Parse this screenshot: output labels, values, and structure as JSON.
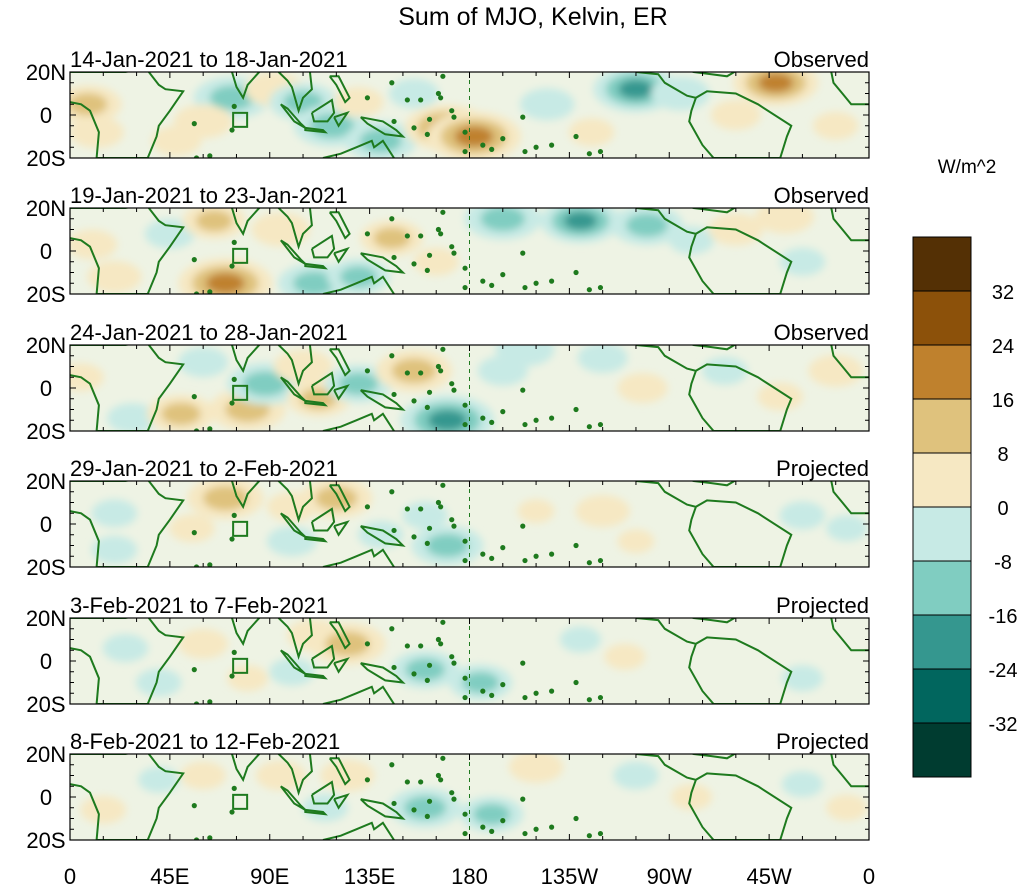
{
  "chart_data": {
    "type": "heatmap",
    "title": "Sum of MJO, Kelvin, ER",
    "units_label": "W/m^2",
    "xlabel": "",
    "ylabel": "",
    "x_ticks": [
      "0",
      "45E",
      "90E",
      "135E",
      "180",
      "135W",
      "90W",
      "45W",
      "0"
    ],
    "x_tick_values": [
      0,
      45,
      90,
      135,
      180,
      225,
      270,
      315,
      360
    ],
    "xlim": [
      0,
      360
    ],
    "y_ticks": [
      "20N",
      "0",
      "20S"
    ],
    "y_tick_values": [
      20,
      0,
      -20
    ],
    "ylim": [
      -20,
      20
    ],
    "colorbar": {
      "levels": [
        -40,
        -32,
        -24,
        -16,
        -8,
        0,
        8,
        16,
        24,
        32,
        40
      ],
      "tick_labels": [
        "32",
        "24",
        "16",
        "8",
        "0",
        "-8",
        "-16",
        "-24",
        "-32"
      ],
      "colors": [
        "#003c30",
        "#01665e",
        "#35978f",
        "#80cdc1",
        "#c7eae5",
        "#f6e8c3",
        "#dfc27d",
        "#bf812d",
        "#8c510a",
        "#543005"
      ]
    },
    "panels": [
      {
        "period": "14-Jan-2021 to 18-Jan-2021",
        "status": "Observed",
        "anomalies": [
          {
            "lon": 8,
            "lat": 5,
            "val": 18
          },
          {
            "lon": 12,
            "lat": -8,
            "val": 12
          },
          {
            "lon": 48,
            "lat": -12,
            "val": 10
          },
          {
            "lon": 73,
            "lat": 8,
            "val": -22
          },
          {
            "lon": 60,
            "lat": -3,
            "val": 14
          },
          {
            "lon": 92,
            "lat": 12,
            "val": 14
          },
          {
            "lon": 105,
            "lat": 6,
            "val": -18
          },
          {
            "lon": 118,
            "lat": -5,
            "val": -22
          },
          {
            "lon": 140,
            "lat": -12,
            "val": -20
          },
          {
            "lon": 130,
            "lat": 6,
            "val": 10
          },
          {
            "lon": 170,
            "lat": -6,
            "val": 26
          },
          {
            "lon": 182,
            "lat": -10,
            "val": 30
          },
          {
            "lon": 155,
            "lat": 10,
            "val": -10
          },
          {
            "lon": 215,
            "lat": 5,
            "val": -12
          },
          {
            "lon": 235,
            "lat": -8,
            "val": 8
          },
          {
            "lon": 255,
            "lat": 12,
            "val": -26
          },
          {
            "lon": 275,
            "lat": 10,
            "val": -14
          },
          {
            "lon": 300,
            "lat": 0,
            "val": 10
          },
          {
            "lon": 318,
            "lat": 15,
            "val": 26
          },
          {
            "lon": 345,
            "lat": -5,
            "val": 8
          }
        ]
      },
      {
        "period": "19-Jan-2021 to 23-Jan-2021",
        "status": "Observed",
        "anomalies": [
          {
            "lon": 10,
            "lat": 3,
            "val": 10
          },
          {
            "lon": 20,
            "lat": -12,
            "val": 12
          },
          {
            "lon": 45,
            "lat": 8,
            "val": -10
          },
          {
            "lon": 65,
            "lat": 14,
            "val": 16
          },
          {
            "lon": 70,
            "lat": -15,
            "val": 30
          },
          {
            "lon": 95,
            "lat": 10,
            "val": 14
          },
          {
            "lon": 110,
            "lat": -15,
            "val": -20
          },
          {
            "lon": 130,
            "lat": -12,
            "val": -16
          },
          {
            "lon": 145,
            "lat": 6,
            "val": 16
          },
          {
            "lon": 165,
            "lat": -5,
            "val": 8
          },
          {
            "lon": 195,
            "lat": 15,
            "val": -22
          },
          {
            "lon": 230,
            "lat": 14,
            "val": -24
          },
          {
            "lon": 260,
            "lat": 12,
            "val": -20
          },
          {
            "lon": 280,
            "lat": 5,
            "val": -8
          },
          {
            "lon": 300,
            "lat": 10,
            "val": 12
          },
          {
            "lon": 322,
            "lat": 16,
            "val": 14
          },
          {
            "lon": 330,
            "lat": -5,
            "val": -8
          }
        ]
      },
      {
        "period": "24-Jan-2021 to 28-Jan-2021",
        "status": "Observed",
        "anomalies": [
          {
            "lon": 5,
            "lat": 5,
            "val": 8
          },
          {
            "lon": 28,
            "lat": -14,
            "val": -10
          },
          {
            "lon": 60,
            "lat": 12,
            "val": -10
          },
          {
            "lon": 50,
            "lat": -12,
            "val": 18
          },
          {
            "lon": 80,
            "lat": -10,
            "val": 22
          },
          {
            "lon": 88,
            "lat": 2,
            "val": -22
          },
          {
            "lon": 105,
            "lat": 10,
            "val": 14
          },
          {
            "lon": 112,
            "lat": -5,
            "val": 16
          },
          {
            "lon": 130,
            "lat": 2,
            "val": -18
          },
          {
            "lon": 155,
            "lat": 8,
            "val": 22
          },
          {
            "lon": 170,
            "lat": -15,
            "val": -30
          },
          {
            "lon": 195,
            "lat": 8,
            "val": -10
          },
          {
            "lon": 205,
            "lat": 18,
            "val": -14
          },
          {
            "lon": 240,
            "lat": 14,
            "val": -10
          },
          {
            "lon": 258,
            "lat": 0,
            "val": 10
          },
          {
            "lon": 295,
            "lat": 8,
            "val": -8
          },
          {
            "lon": 320,
            "lat": -4,
            "val": 8
          },
          {
            "lon": 345,
            "lat": 8,
            "val": 12
          }
        ]
      },
      {
        "period": "29-Jan-2021 to 2-Feb-2021",
        "status": "Projected",
        "anomalies": [
          {
            "lon": 20,
            "lat": 5,
            "val": -8
          },
          {
            "lon": 20,
            "lat": -12,
            "val": -8
          },
          {
            "lon": 70,
            "lat": 12,
            "val": 22
          },
          {
            "lon": 55,
            "lat": -2,
            "val": 8
          },
          {
            "lon": 100,
            "lat": 8,
            "val": 10
          },
          {
            "lon": 100,
            "lat": -8,
            "val": -10
          },
          {
            "lon": 120,
            "lat": 12,
            "val": 20
          },
          {
            "lon": 140,
            "lat": -5,
            "val": -8
          },
          {
            "lon": 170,
            "lat": -10,
            "val": -20
          },
          {
            "lon": 160,
            "lat": 4,
            "val": -8
          },
          {
            "lon": 210,
            "lat": 6,
            "val": 4
          },
          {
            "lon": 240,
            "lat": 6,
            "val": 12
          },
          {
            "lon": 255,
            "lat": -8,
            "val": 4
          },
          {
            "lon": 330,
            "lat": 4,
            "val": -8
          },
          {
            "lon": 350,
            "lat": -2,
            "val": -6
          }
        ]
      },
      {
        "period": "3-Feb-2021 to 7-Feb-2021",
        "status": "Projected",
        "anomalies": [
          {
            "lon": 25,
            "lat": 6,
            "val": -8
          },
          {
            "lon": 40,
            "lat": -10,
            "val": -8
          },
          {
            "lon": 60,
            "lat": 8,
            "val": 10
          },
          {
            "lon": 80,
            "lat": -8,
            "val": 6
          },
          {
            "lon": 110,
            "lat": 12,
            "val": 12
          },
          {
            "lon": 125,
            "lat": 8,
            "val": 22
          },
          {
            "lon": 100,
            "lat": -5,
            "val": -8
          },
          {
            "lon": 160,
            "lat": -4,
            "val": -18
          },
          {
            "lon": 185,
            "lat": -10,
            "val": -16
          },
          {
            "lon": 230,
            "lat": 10,
            "val": -6
          },
          {
            "lon": 250,
            "lat": 2,
            "val": 6
          },
          {
            "lon": 330,
            "lat": -8,
            "val": -6
          }
        ]
      },
      {
        "period": "8-Feb-2021 to 12-Feb-2021",
        "status": "Projected",
        "anomalies": [
          {
            "lon": 15,
            "lat": -6,
            "val": 8
          },
          {
            "lon": 40,
            "lat": 8,
            "val": -6
          },
          {
            "lon": 60,
            "lat": 10,
            "val": 8
          },
          {
            "lon": 95,
            "lat": 10,
            "val": 10
          },
          {
            "lon": 115,
            "lat": -5,
            "val": -8
          },
          {
            "lon": 125,
            "lat": 10,
            "val": 12
          },
          {
            "lon": 160,
            "lat": -5,
            "val": -20
          },
          {
            "lon": 190,
            "lat": -8,
            "val": -16
          },
          {
            "lon": 210,
            "lat": 14,
            "val": 12
          },
          {
            "lon": 255,
            "lat": 10,
            "val": -8
          },
          {
            "lon": 280,
            "lat": 0,
            "val": 6
          },
          {
            "lon": 330,
            "lat": 6,
            "val": -6
          },
          {
            "lon": 350,
            "lat": -5,
            "val": 6
          }
        ]
      }
    ]
  }
}
